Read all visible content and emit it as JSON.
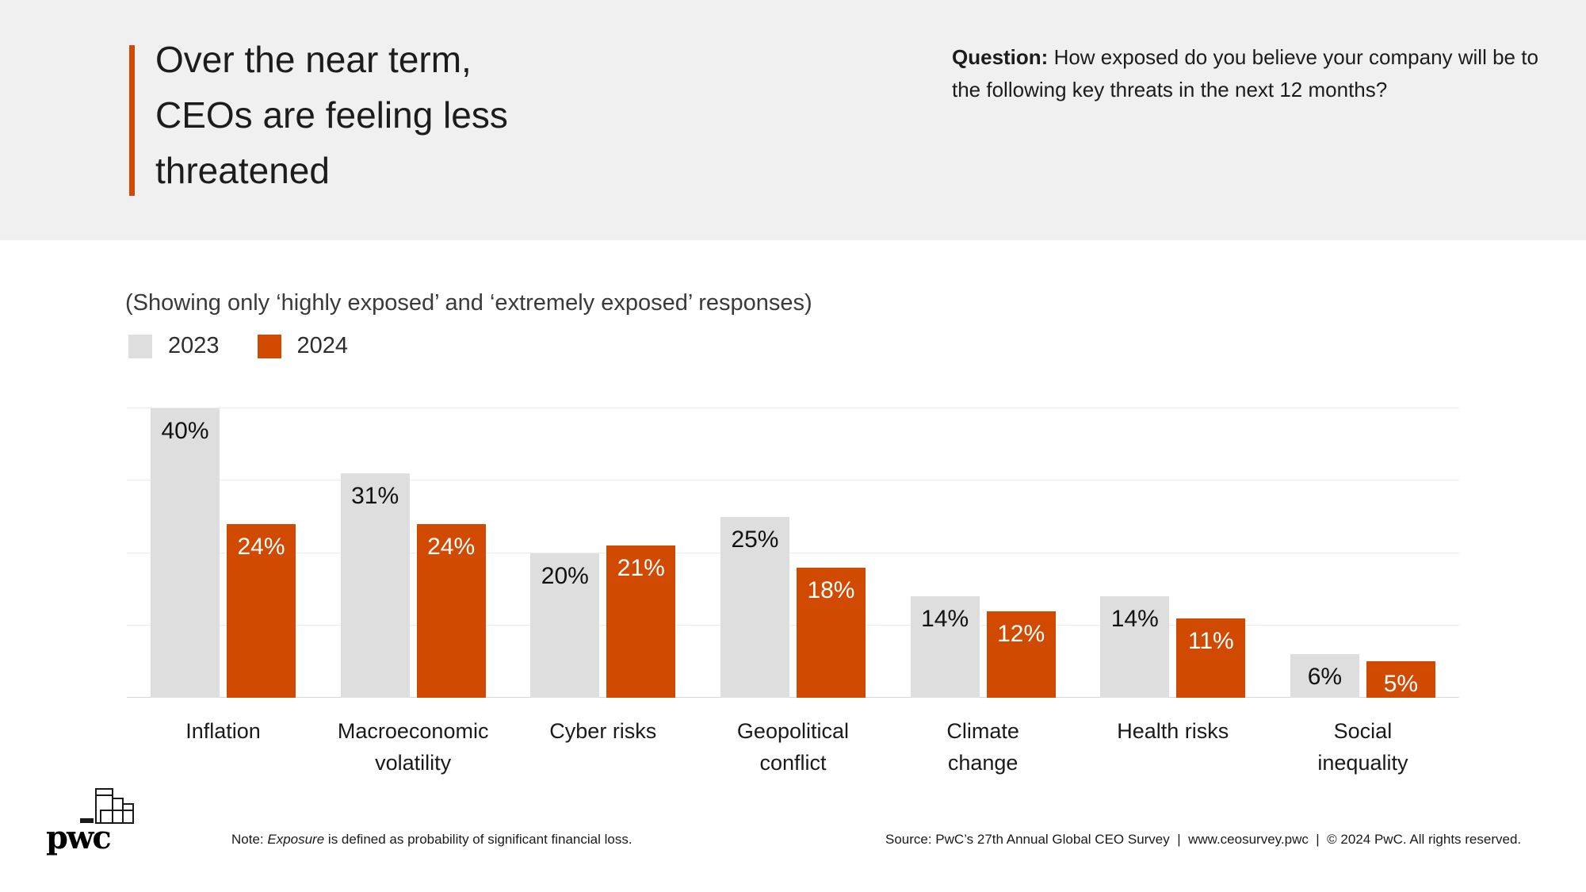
{
  "header": {
    "title": "Over the near term,\nCEOs are feeling less\nthreatened",
    "question_label": "Question:",
    "question_text": " How exposed do you believe your company will be to the following key threats in the next 12 months?"
  },
  "subtitle": "(Showing only ‘highly exposed’ and ‘extremely exposed’ responses)",
  "legend": [
    {
      "label": "2023",
      "color": "#dedede"
    },
    {
      "label": "2024",
      "color": "#d04a02"
    }
  ],
  "chart_data": {
    "type": "bar",
    "categories": [
      "Inflation",
      "Macroeconomic\nvolatility",
      "Cyber risks",
      "Geopolitical\nconflict",
      "Climate change",
      "Health risks",
      "Social inequality"
    ],
    "series": [
      {
        "name": "2023",
        "color": "#dedede",
        "values": [
          40,
          31,
          20,
          25,
          14,
          14,
          6
        ]
      },
      {
        "name": "2024",
        "color": "#d04a02",
        "values": [
          24,
          24,
          21,
          18,
          12,
          11,
          5
        ]
      }
    ],
    "unit": "%",
    "ylim": [
      0,
      40
    ],
    "gridline_step": 10,
    "grid": true,
    "y_axis_labels": false,
    "legend_position": "top-left",
    "value_labels": "inside-top",
    "title": "",
    "xlabel": "",
    "ylabel": ""
  },
  "footer": {
    "logo_text": "pwc",
    "note_label": "Note: ",
    "note_term": "Exposure",
    "note_rest": " is defined as probability of significant financial loss.",
    "source": "Source: PwC’s 27th Annual Global CEO Survey  |  www.ceosurvey.pwc  |  © 2024 PwC. All rights reserved."
  },
  "colors": {
    "accent_orange": "#d04a02",
    "bar_gray": "#dedede",
    "header_bg": "#f0f0f0",
    "background": "#ffffff",
    "gridline": "#ebebeb",
    "baseline": "#d7d7d7",
    "text_dark": "#1c1c1c"
  }
}
